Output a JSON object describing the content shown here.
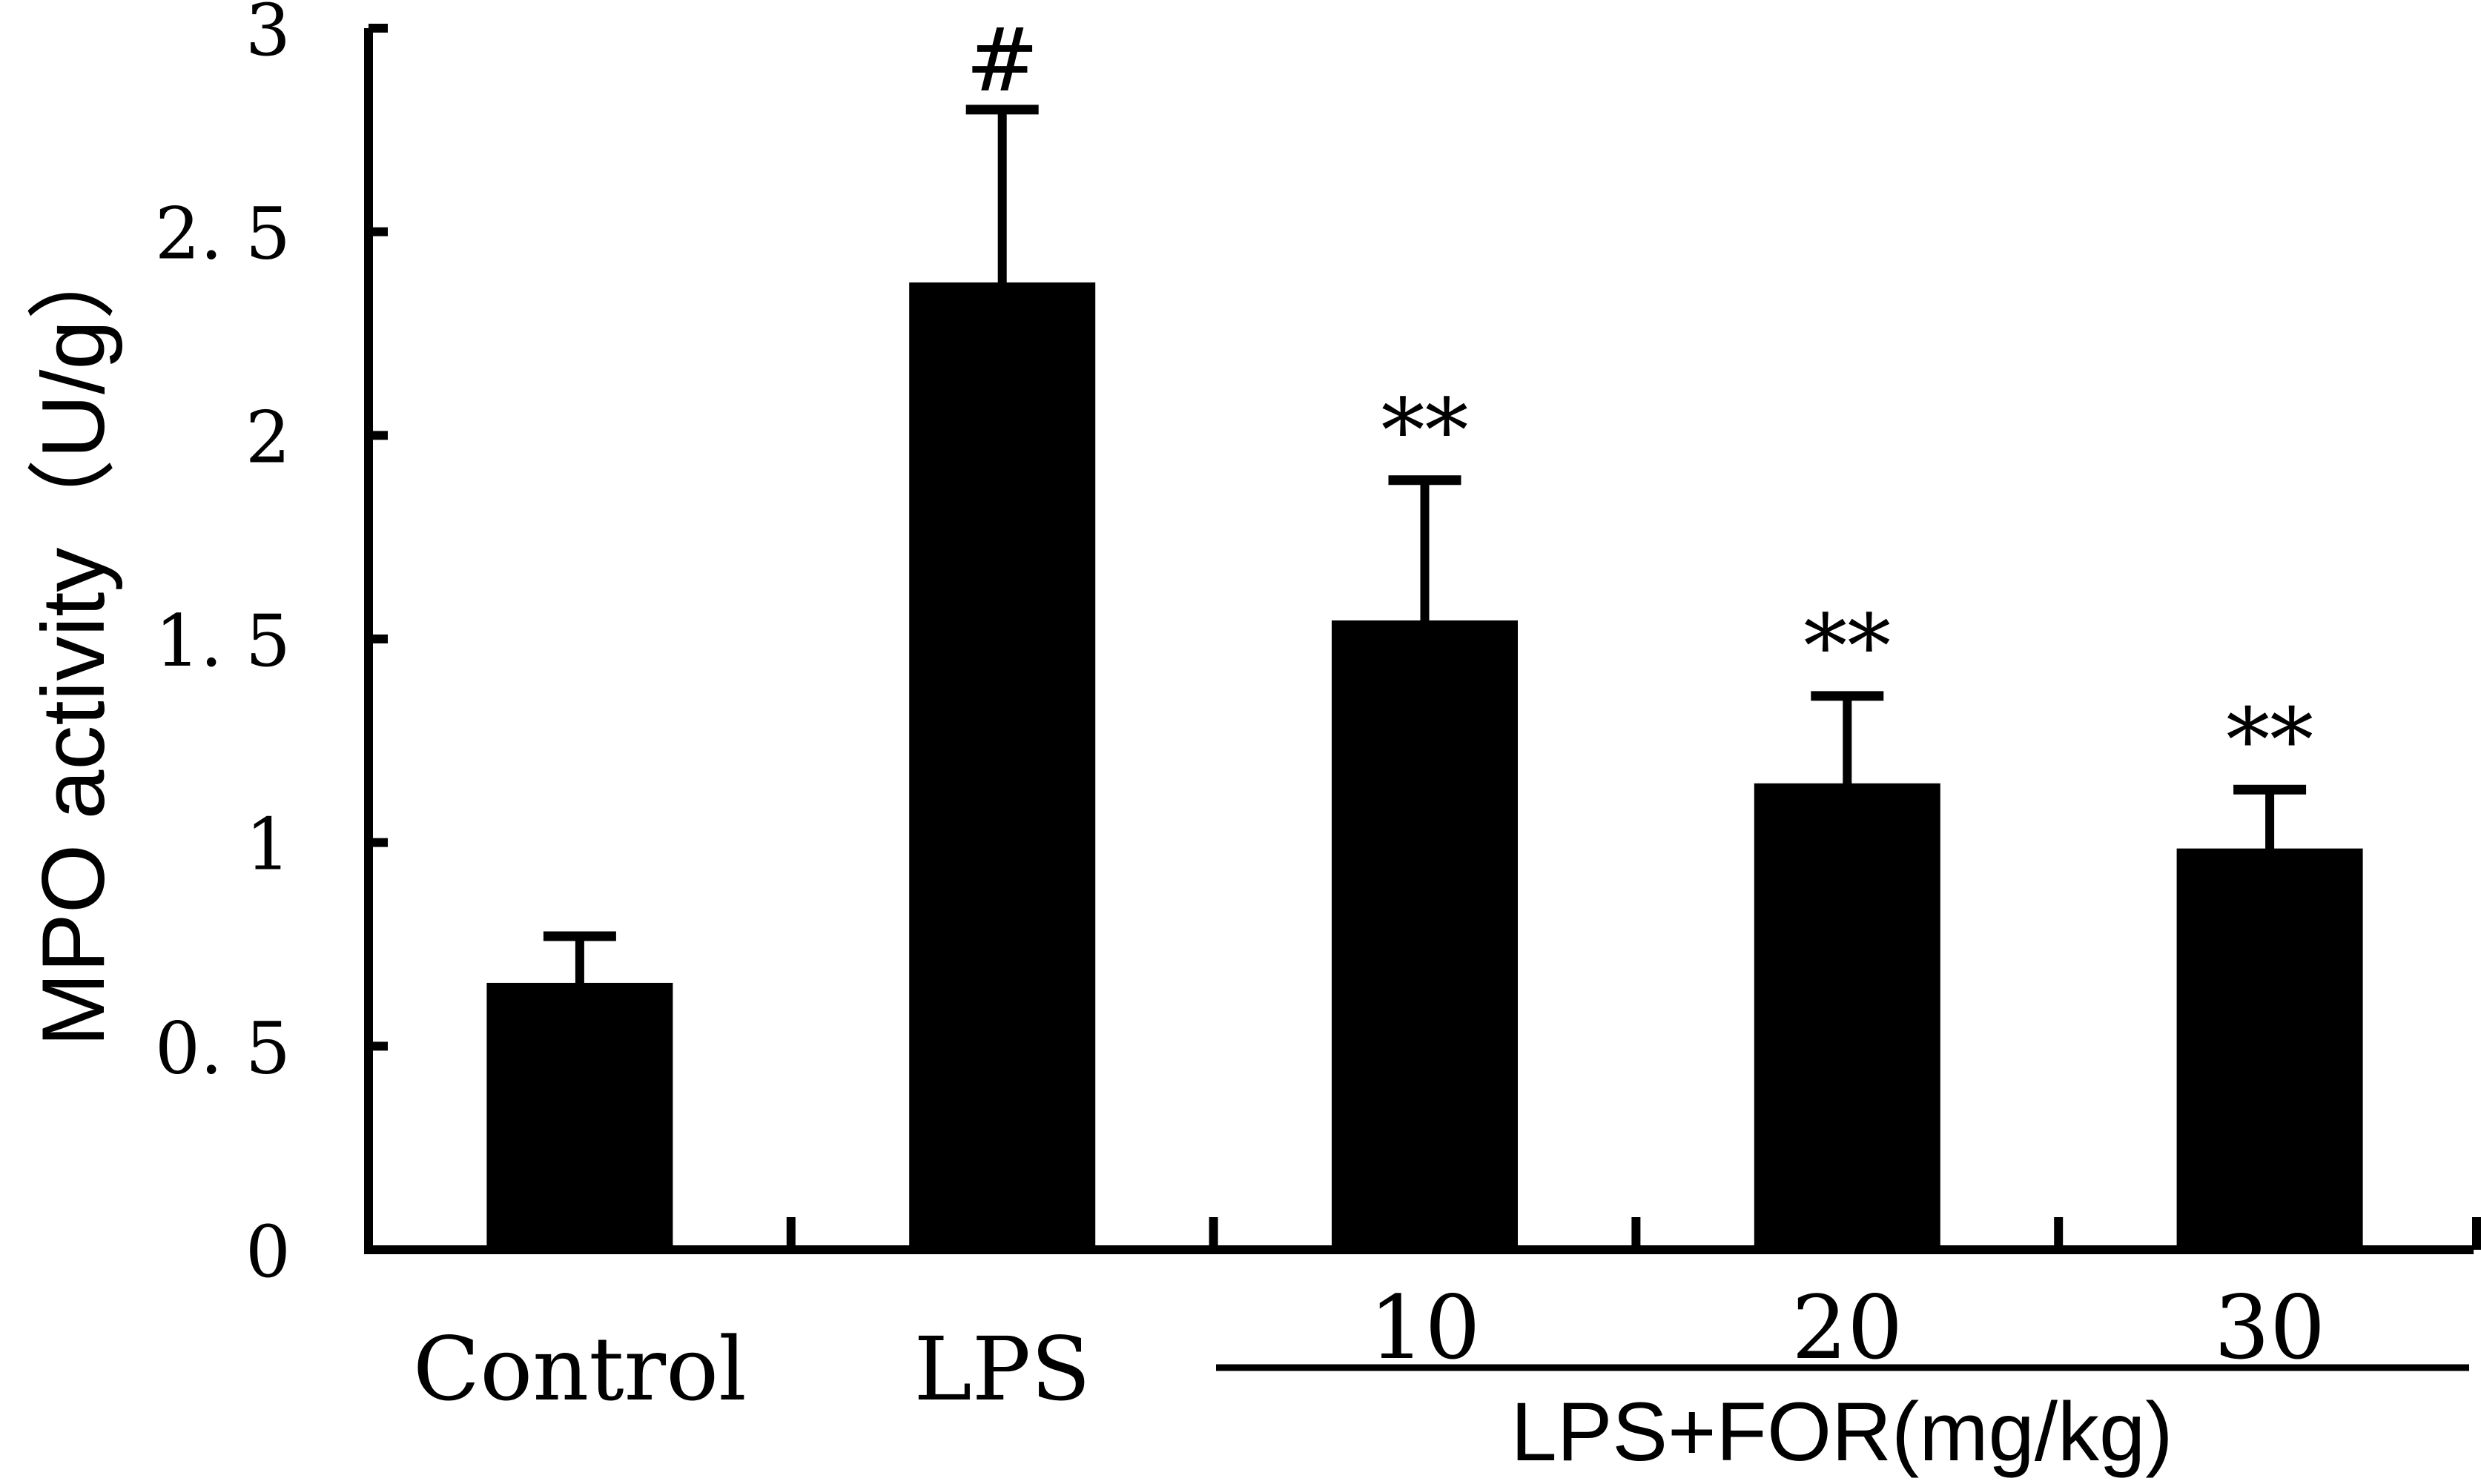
{
  "chart_data": {
    "type": "bar",
    "title": "",
    "ylabel": "MPO activity（U/g）",
    "xlabel": "",
    "ylim": [
      0,
      3
    ],
    "yticks": [
      0,
      0.5,
      1,
      1.5,
      2,
      2.5,
      3
    ],
    "ytick_labels": [
      "0",
      "0. 5",
      "1",
      "1. 5",
      "2",
      "2. 5",
      "3"
    ],
    "categories": [
      "Control",
      "LPS",
      "10",
      "20",
      "30"
    ],
    "values": [
      0.65,
      2.37,
      1.54,
      1.14,
      0.98
    ],
    "error_upper": [
      0.12,
      0.43,
      0.35,
      0.22,
      0.15
    ],
    "significance": [
      "",
      "#",
      "**",
      "**",
      "**"
    ],
    "group_label": "LPS+FOR(mg/kg)",
    "bar_color": "#000000",
    "grid": false,
    "legend": "none"
  }
}
